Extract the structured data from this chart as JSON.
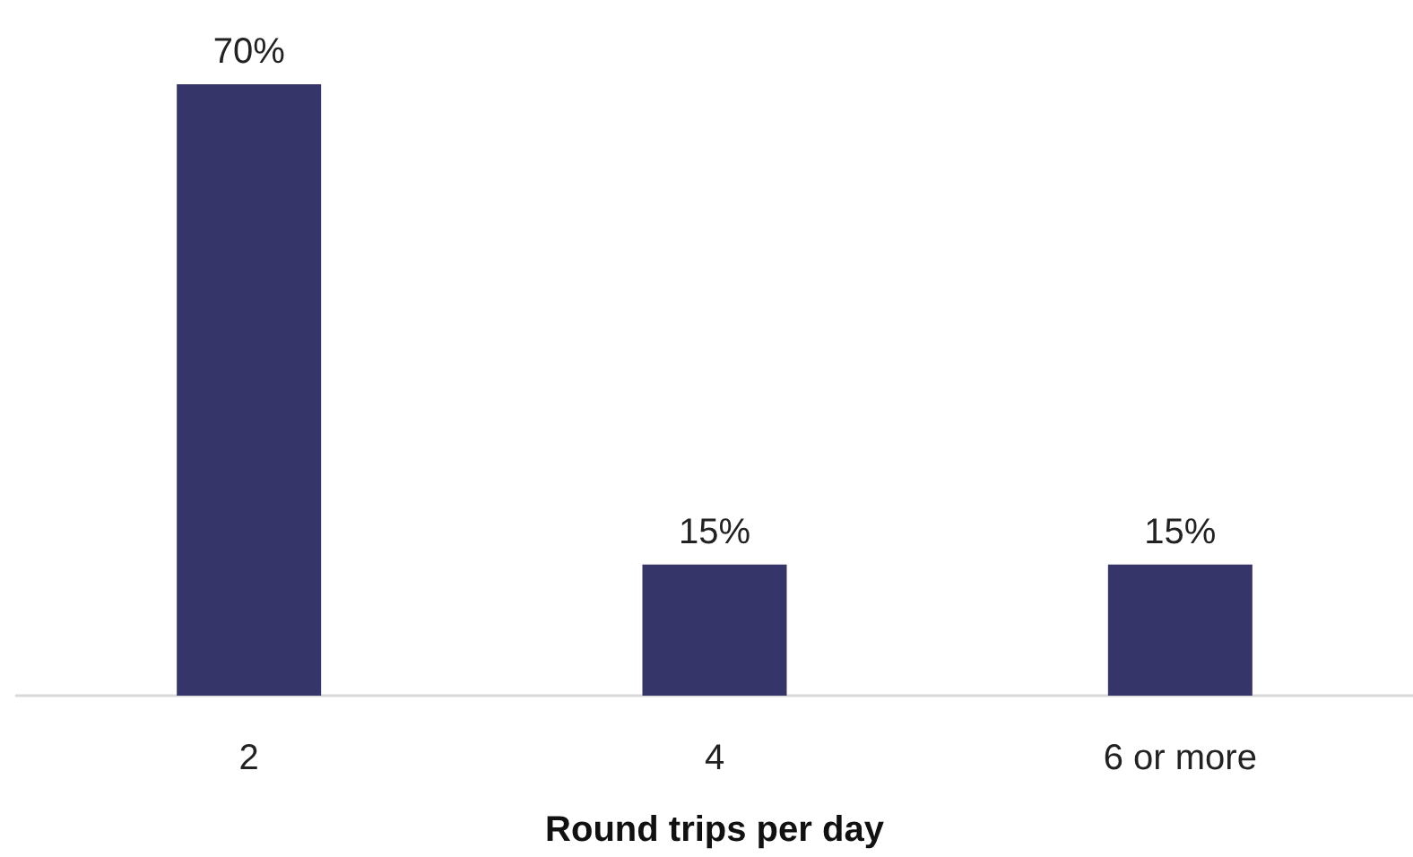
{
  "chart_data": {
    "type": "bar",
    "xlabel": "Round trips per day",
    "categories": [
      "2",
      "4",
      "6 or more"
    ],
    "values": [
      70,
      15,
      15
    ],
    "value_labels": [
      "70%",
      "15%",
      "15%"
    ],
    "color": "#35356a"
  }
}
